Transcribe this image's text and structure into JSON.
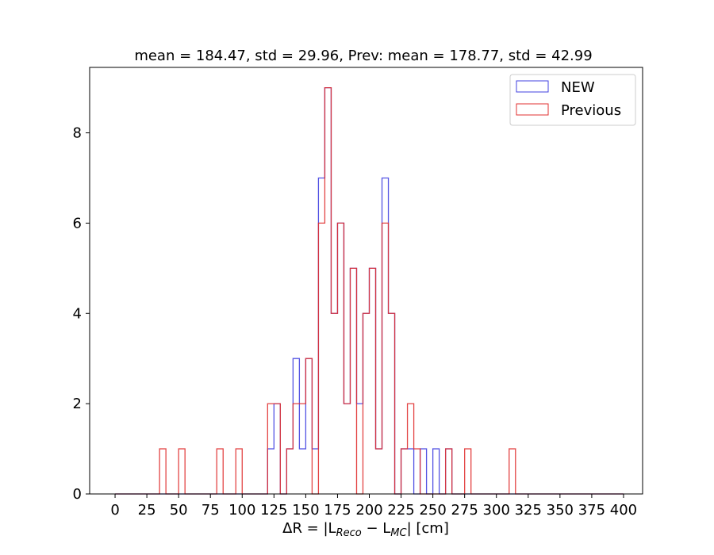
{
  "chart_data": {
    "type": "histogram",
    "title": "mean = 184.47, std = 29.96, Prev: mean = 178.77, std = 42.99",
    "xlabel": "ΔR = |L_Reco − L_MC| [cm]",
    "xlabel_parts": {
      "main": "ΔR = |L",
      "sub1": "Reco",
      "mid": " − L",
      "sub2": "MC",
      "end": "| [cm]"
    },
    "ylabel": "",
    "xlim": [
      -20,
      415
    ],
    "ylim": [
      0,
      9.45
    ],
    "bin_width": 5,
    "x_ticks": [
      "0",
      "25",
      "50",
      "75",
      "100",
      "125",
      "150",
      "175",
      "200",
      "225",
      "250",
      "275",
      "300",
      "325",
      "350",
      "375",
      "400"
    ],
    "x_tick_values": [
      0,
      25,
      50,
      75,
      100,
      125,
      150,
      175,
      200,
      225,
      250,
      275,
      300,
      325,
      350,
      375,
      400
    ],
    "y_ticks": [
      "0",
      "2",
      "4",
      "6",
      "8"
    ],
    "y_tick_values": [
      0,
      2,
      4,
      6,
      8
    ],
    "grid": false,
    "legend_position": "top-right",
    "series": [
      {
        "name": "NEW",
        "color": "#4040e0",
        "bins": [
          [
            120,
            1
          ],
          [
            125,
            2
          ],
          [
            135,
            1
          ],
          [
            140,
            3
          ],
          [
            145,
            1
          ],
          [
            150,
            3
          ],
          [
            155,
            1
          ],
          [
            160,
            7
          ],
          [
            165,
            9
          ],
          [
            170,
            4
          ],
          [
            175,
            6
          ],
          [
            180,
            2
          ],
          [
            185,
            5
          ],
          [
            190,
            2
          ],
          [
            195,
            4
          ],
          [
            200,
            5
          ],
          [
            205,
            1
          ],
          [
            210,
            7
          ],
          [
            215,
            4
          ],
          [
            225,
            1
          ],
          [
            230,
            1
          ],
          [
            240,
            1
          ],
          [
            250,
            1
          ],
          [
            260,
            1
          ]
        ]
      },
      {
        "name": "Previous",
        "color": "#e03030",
        "bins": [
          [
            35,
            1
          ],
          [
            50,
            1
          ],
          [
            80,
            1
          ],
          [
            95,
            1
          ],
          [
            120,
            2
          ],
          [
            125,
            2
          ],
          [
            135,
            1
          ],
          [
            140,
            2
          ],
          [
            145,
            2
          ],
          [
            150,
            3
          ],
          [
            160,
            6
          ],
          [
            165,
            9
          ],
          [
            170,
            4
          ],
          [
            175,
            6
          ],
          [
            180,
            2
          ],
          [
            185,
            5
          ],
          [
            190,
            0
          ],
          [
            195,
            4
          ],
          [
            200,
            5
          ],
          [
            205,
            1
          ],
          [
            210,
            6
          ],
          [
            215,
            4
          ],
          [
            225,
            1
          ],
          [
            230,
            2
          ],
          [
            235,
            1
          ],
          [
            260,
            1
          ],
          [
            275,
            1
          ],
          [
            310,
            1
          ]
        ]
      }
    ]
  }
}
